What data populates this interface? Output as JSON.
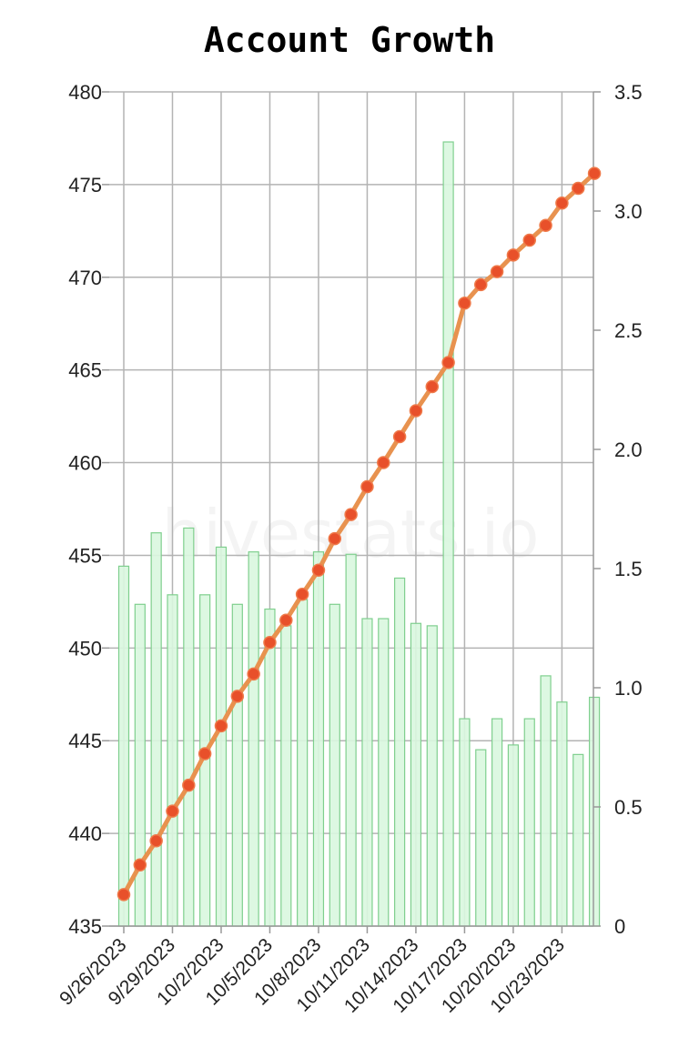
{
  "chart_data": {
    "type": "bar",
    "title": "Account Growth",
    "watermark": "hivestats.io",
    "xlabel": "",
    "ylabel": "",
    "x_tick_labels": [
      "9/26/2023",
      "9/29/2023",
      "10/2/2023",
      "10/5/2023",
      "10/8/2023",
      "10/11/2023",
      "10/14/2023",
      "10/17/2023",
      "10/20/2023",
      "10/23/2023"
    ],
    "categories": [
      "9/26/2023",
      "9/27/2023",
      "9/28/2023",
      "9/29/2023",
      "9/30/2023",
      "10/1/2023",
      "10/2/2023",
      "10/3/2023",
      "10/4/2023",
      "10/5/2023",
      "10/6/2023",
      "10/7/2023",
      "10/8/2023",
      "10/9/2023",
      "10/10/2023",
      "10/11/2023",
      "10/12/2023",
      "10/13/2023",
      "10/14/2023",
      "10/15/2023",
      "10/16/2023",
      "10/17/2023",
      "10/18/2023",
      "10/19/2023",
      "10/20/2023",
      "10/21/2023",
      "10/22/2023",
      "10/23/2023",
      "10/24/2023",
      "10/25/2023"
    ],
    "y_left": {
      "ylim": [
        435,
        480
      ],
      "ticks": [
        435,
        440,
        445,
        450,
        455,
        460,
        465,
        470,
        475,
        480
      ]
    },
    "y_right": {
      "ylim": [
        0,
        3.5
      ],
      "ticks": [
        "0",
        "0.5",
        "1.0",
        "1.5",
        "2.0",
        "2.5",
        "3.0",
        "3.5"
      ]
    },
    "grid": true,
    "series": [
      {
        "type": "bar",
        "axis": "right",
        "color": "#d9f7df",
        "stroke": "#7fcf8e",
        "values": [
          1.51,
          1.35,
          1.65,
          1.39,
          1.67,
          1.39,
          1.59,
          1.35,
          1.57,
          1.33,
          1.26,
          1.37,
          1.57,
          1.35,
          1.56,
          1.29,
          1.29,
          1.46,
          1.27,
          1.26,
          3.29,
          0.87,
          0.74,
          0.87,
          0.76,
          0.87,
          1.05,
          0.94,
          0.72,
          0.96
        ]
      },
      {
        "type": "line",
        "axis": "left",
        "color": "#e8924f",
        "marker_color": "#e8502a",
        "values": [
          436.7,
          438.3,
          439.6,
          441.2,
          442.6,
          444.3,
          445.8,
          447.4,
          448.6,
          450.3,
          451.5,
          452.9,
          454.2,
          455.9,
          457.2,
          458.7,
          460.0,
          461.4,
          462.8,
          464.1,
          465.4,
          468.6,
          469.6,
          470.3,
          471.2,
          472.0,
          472.8,
          474.0,
          474.8,
          475.6
        ]
      }
    ]
  }
}
